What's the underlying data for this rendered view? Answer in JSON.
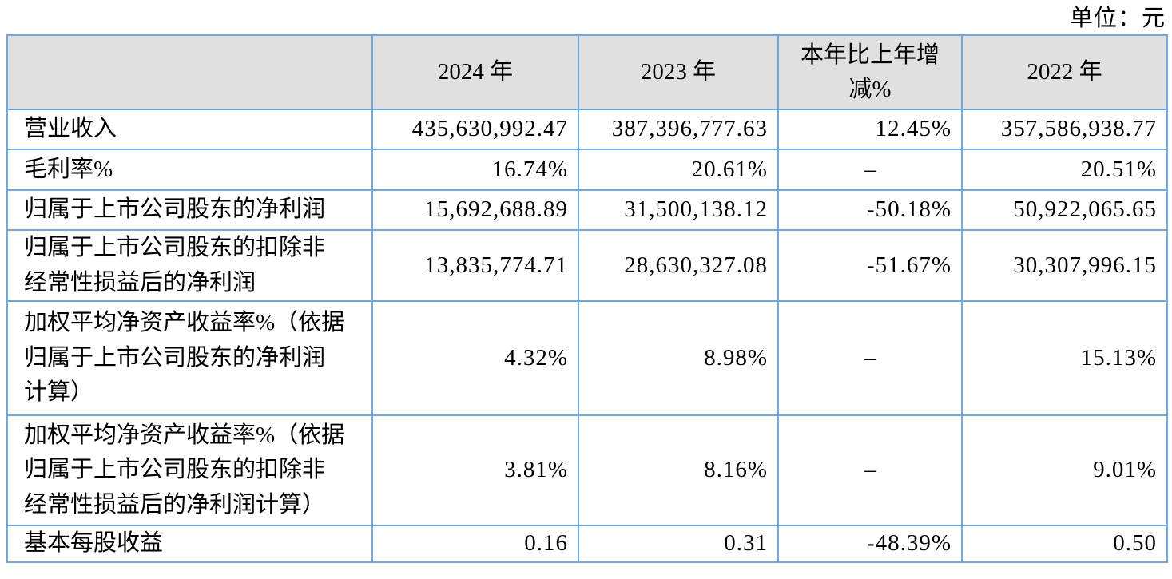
{
  "unit_label": "单位：元",
  "colors": {
    "table_border": "#6fa8dc",
    "header_bg": "#e0e0e0",
    "text": "#000000"
  },
  "table": {
    "columns": [
      "",
      "2024 年",
      "2023 年",
      "本年比上年增\n减%",
      "2022 年"
    ],
    "rows": [
      {
        "label": "营业收入",
        "v2024": "435,630,992.47",
        "v2023": "387,396,777.63",
        "yoy": "12.45%",
        "v2022": "357,586,938.77"
      },
      {
        "label": "毛利率%",
        "v2024": "16.74%",
        "v2023": "20.61%",
        "yoy": "–",
        "v2022": "20.51%"
      },
      {
        "label": "归属于上市公司股东的净利润",
        "v2024": "15,692,688.89",
        "v2023": "31,500,138.12",
        "yoy": "-50.18%",
        "v2022": "50,922,065.65"
      },
      {
        "label": "归属于上市公司股东的扣除非\n经常性损益后的净利润",
        "v2024": "13,835,774.71",
        "v2023": "28,630,327.08",
        "yoy": "-51.67%",
        "v2022": "30,307,996.15"
      },
      {
        "label": "加权平均净资产收益率%（依据\n归属于上市公司股东的净利润\n计算）",
        "v2024": "4.32%",
        "v2023": "8.98%",
        "yoy": "–",
        "v2022": "15.13%"
      },
      {
        "label": "加权平均净资产收益率%（依据\n归属于上市公司股东的扣除非\n经常性损益后的净利润计算）",
        "v2024": "3.81%",
        "v2023": "8.16%",
        "yoy": "–",
        "v2022": "9.01%"
      },
      {
        "label": "基本每股收益",
        "v2024": "0.16",
        "v2023": "0.31",
        "yoy": "-48.39%",
        "v2022": "0.50"
      }
    ]
  }
}
